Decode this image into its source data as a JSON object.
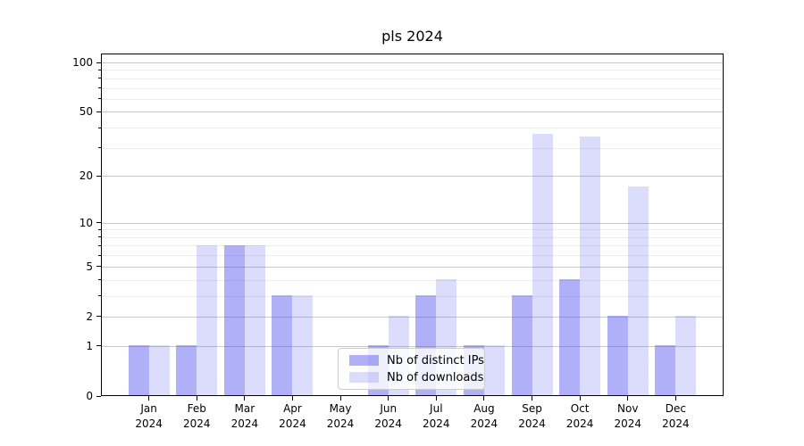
{
  "chart_data": {
    "type": "bar",
    "title": "pls 2024",
    "categories": [
      "Jan",
      "Feb",
      "Mar",
      "Apr",
      "May",
      "Jun",
      "Jul",
      "Aug",
      "Sep",
      "Oct",
      "Nov",
      "Dec"
    ],
    "x_tick_year": "2024",
    "series": [
      {
        "name": "Nb of distinct IPs",
        "color": "rgba(80,80,240,0.45)",
        "values": [
          1,
          1,
          7,
          3,
          0,
          1,
          3,
          1,
          3,
          4,
          2,
          1
        ]
      },
      {
        "name": "Nb of downloads",
        "color": "rgba(80,80,240,0.2)",
        "values": [
          1,
          7,
          7,
          3,
          0,
          2,
          4,
          1,
          36,
          35,
          17,
          2
        ]
      }
    ],
    "y_axis": {
      "scale": "log1p",
      "major_ticks": [
        0,
        1,
        2,
        5,
        10,
        20,
        50,
        100
      ],
      "minor_ticks": [
        3,
        4,
        6,
        7,
        8,
        9,
        30,
        40,
        60,
        70,
        80,
        90
      ],
      "top_value": 113
    },
    "xlabel": "",
    "ylabel": "",
    "grid": true,
    "legend_position": "lower center (inside plot)"
  },
  "colors": {
    "background": "#ffffff",
    "major_grid": "#c9c9c9",
    "minor_grid": "#ececec",
    "spine": "#000000",
    "text": "#000000",
    "legend_border": "#cccccc",
    "legend_bg": "rgba(255,255,255,0.8)"
  }
}
